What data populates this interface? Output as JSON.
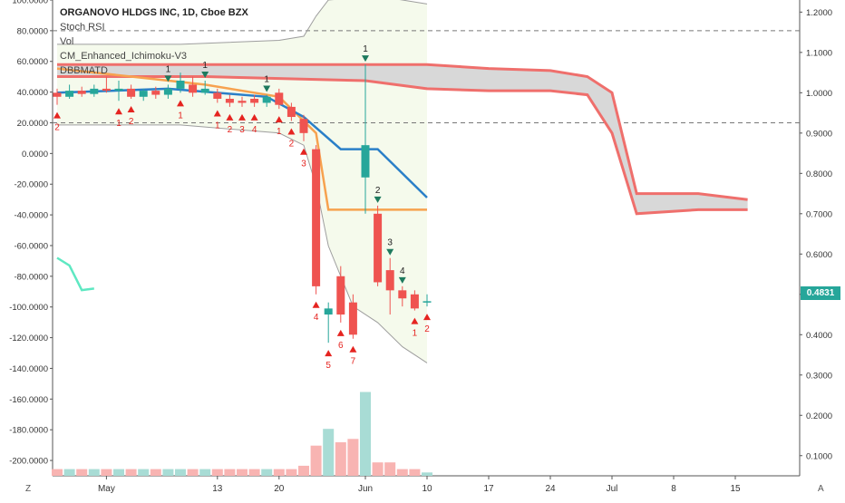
{
  "legend": {
    "title": "ORGANOVO HLDGS INC, 1D, Cboe BZX",
    "indicators": [
      "Stoch RSI",
      "Vol",
      "CM_Enhanced_Ichimoku-V3",
      "DBBMATD"
    ]
  },
  "corner": {
    "left": "Z",
    "right": "A"
  },
  "last_price": "0.4831",
  "colors": {
    "up": "#26a69a",
    "down": "#ef5350",
    "ema": "#2a7fc8",
    "kijun": "#f7a24f",
    "bb": "#9e9e9e",
    "cloud": "#d8d8d8",
    "cloud_edge": "#ef6f6c",
    "stoch": "#5ee8c2"
  },
  "chart_data": {
    "type": "candlestick",
    "title": "ORGANOVO HLDGS INC, 1D, Cboe BZX",
    "x_ticks": [
      {
        "i": 4,
        "label": "May"
      },
      {
        "i": 13,
        "label": "13"
      },
      {
        "i": 18,
        "label": "20"
      },
      {
        "i": 25,
        "label": "Jun"
      },
      {
        "i": 30,
        "label": "10"
      },
      {
        "i": 35,
        "label": "17"
      },
      {
        "i": 40,
        "label": "24"
      },
      {
        "i": 45,
        "label": "Jul"
      },
      {
        "i": 50,
        "label": "8"
      },
      {
        "i": 55,
        "label": "15"
      }
    ],
    "right_axis": {
      "ylim": [
        0.05,
        1.23
      ],
      "ticks": [
        "1.2000",
        "1.1000",
        "1.0000",
        "0.9000",
        "0.8000",
        "0.7000",
        "0.6000",
        "0.5000",
        "0.4000",
        "0.3000",
        "0.2000",
        "0.1000"
      ]
    },
    "left_axis": {
      "ylim": [
        -210,
        100
      ],
      "ticks": [
        "100.0000",
        "80.0000",
        "60.0000",
        "40.0000",
        "20.0000",
        "0.0000",
        "-20.0000",
        "-40.0000",
        "-60.0000",
        "-80.0000",
        "-100.0000",
        "-120.0000",
        "-140.0000",
        "-160.0000",
        "-180.0000",
        "-200.0000"
      ],
      "dashed_levels": [
        80,
        20
      ]
    },
    "candles": [
      {
        "i": 0,
        "o": 1.0,
        "h": 1.01,
        "l": 0.97,
        "c": 0.99
      },
      {
        "i": 1,
        "o": 0.99,
        "h": 1.02,
        "l": 0.985,
        "c": 1.005
      },
      {
        "i": 2,
        "o": 1.005,
        "h": 1.015,
        "l": 0.99,
        "c": 0.997
      },
      {
        "i": 3,
        "o": 0.997,
        "h": 1.02,
        "l": 0.99,
        "c": 1.01
      },
      {
        "i": 4,
        "o": 1.01,
        "h": 1.04,
        "l": 1.0,
        "c": 1.005
      },
      {
        "i": 5,
        "o": 1.005,
        "h": 1.03,
        "l": 0.98,
        "c": 1.01
      },
      {
        "i": 6,
        "o": 1.01,
        "h": 1.02,
        "l": 0.985,
        "c": 0.99
      },
      {
        "i": 7,
        "o": 0.99,
        "h": 1.01,
        "l": 0.98,
        "c": 1.005
      },
      {
        "i": 8,
        "o": 1.005,
        "h": 1.015,
        "l": 0.985,
        "c": 0.995
      },
      {
        "i": 9,
        "o": 0.995,
        "h": 1.02,
        "l": 0.985,
        "c": 1.01
      },
      {
        "i": 10,
        "o": 1.01,
        "h": 1.05,
        "l": 1.0,
        "c": 1.03
      },
      {
        "i": 11,
        "o": 1.02,
        "h": 1.04,
        "l": 0.99,
        "c": 1.0
      },
      {
        "i": 12,
        "o": 1.0,
        "h": 1.03,
        "l": 0.995,
        "c": 1.01
      },
      {
        "i": 13,
        "o": 1.0,
        "h": 1.01,
        "l": 0.975,
        "c": 0.985
      },
      {
        "i": 14,
        "o": 0.985,
        "h": 0.995,
        "l": 0.965,
        "c": 0.975
      },
      {
        "i": 15,
        "o": 0.98,
        "h": 0.99,
        "l": 0.965,
        "c": 0.975
      },
      {
        "i": 16,
        "o": 0.985,
        "h": 0.995,
        "l": 0.965,
        "c": 0.975
      },
      {
        "i": 17,
        "o": 0.975,
        "h": 0.995,
        "l": 0.965,
        "c": 0.99
      },
      {
        "i": 18,
        "o": 1.0,
        "h": 1.01,
        "l": 0.96,
        "c": 0.97
      },
      {
        "i": 19,
        "o": 0.965,
        "h": 0.975,
        "l": 0.93,
        "c": 0.94
      },
      {
        "i": 20,
        "o": 0.935,
        "h": 0.945,
        "l": 0.88,
        "c": 0.9
      },
      {
        "i": 21,
        "o": 0.86,
        "h": 0.87,
        "l": 0.5,
        "c": 0.52
      },
      {
        "i": 22,
        "o": 0.45,
        "h": 0.48,
        "l": 0.38,
        "c": 0.465
      },
      {
        "i": 23,
        "o": 0.545,
        "h": 0.57,
        "l": 0.43,
        "c": 0.45
      },
      {
        "i": 24,
        "o": 0.48,
        "h": 0.5,
        "l": 0.39,
        "c": 0.4
      },
      {
        "i": 25,
        "o": 0.79,
        "h": 1.07,
        "l": 0.7,
        "c": 0.87
      },
      {
        "i": 26,
        "o": 0.7,
        "h": 0.72,
        "l": 0.52,
        "c": 0.53
      },
      {
        "i": 27,
        "o": 0.56,
        "h": 0.59,
        "l": 0.45,
        "c": 0.51
      },
      {
        "i": 28,
        "o": 0.51,
        "h": 0.52,
        "l": 0.47,
        "c": 0.49
      },
      {
        "i": 29,
        "o": 0.5,
        "h": 0.51,
        "l": 0.46,
        "c": 0.465
      },
      {
        "i": 30,
        "o": 0.48,
        "h": 0.5,
        "l": 0.47,
        "c": 0.483
      }
    ],
    "volume": [
      2,
      2,
      2,
      2,
      2,
      2,
      2,
      2,
      2,
      2,
      2,
      2,
      2,
      2,
      2,
      2,
      2,
      2,
      2,
      2,
      3,
      9,
      14,
      10,
      11,
      25,
      4,
      4,
      2,
      2,
      1
    ],
    "ema": [
      {
        "i": 0,
        "v": 1.0
      },
      {
        "i": 9,
        "v": 1.01
      },
      {
        "i": 17,
        "v": 0.99
      },
      {
        "i": 20,
        "v": 0.94
      },
      {
        "i": 23,
        "v": 0.86
      },
      {
        "i": 26,
        "v": 0.86
      },
      {
        "i": 30,
        "v": 0.74
      }
    ],
    "kijun": [
      {
        "i": 0,
        "v": 1.06
      },
      {
        "i": 6,
        "v": 1.04
      },
      {
        "i": 12,
        "v": 1.02
      },
      {
        "i": 18,
        "v": 0.99
      },
      {
        "i": 21,
        "v": 0.9
      },
      {
        "i": 22,
        "v": 0.71
      },
      {
        "i": 26,
        "v": 0.71
      },
      {
        "i": 30,
        "v": 0.71
      }
    ],
    "bb_upper": [
      {
        "i": 0,
        "v": 1.12
      },
      {
        "i": 10,
        "v": 1.12
      },
      {
        "i": 18,
        "v": 1.13
      },
      {
        "i": 20,
        "v": 1.14
      },
      {
        "i": 21,
        "v": 1.19
      },
      {
        "i": 22,
        "v": 1.23
      },
      {
        "i": 26,
        "v": 1.24
      },
      {
        "i": 30,
        "v": 1.22
      }
    ],
    "bb_lower": [
      {
        "i": 0,
        "v": 0.92
      },
      {
        "i": 10,
        "v": 0.92
      },
      {
        "i": 18,
        "v": 0.9
      },
      {
        "i": 20,
        "v": 0.87
      },
      {
        "i": 21,
        "v": 0.77
      },
      {
        "i": 22,
        "v": 0.62
      },
      {
        "i": 24,
        "v": 0.47
      },
      {
        "i": 26,
        "v": 0.43
      },
      {
        "i": 28,
        "v": 0.37
      },
      {
        "i": 30,
        "v": 0.33
      }
    ],
    "cloud_upper": [
      {
        "i": 0,
        "v": 1.07
      },
      {
        "i": 12,
        "v": 1.07
      },
      {
        "i": 25,
        "v": 1.07
      },
      {
        "i": 30,
        "v": 1.07
      },
      {
        "i": 35,
        "v": 1.06
      },
      {
        "i": 40,
        "v": 1.055
      },
      {
        "i": 43,
        "v": 1.04
      },
      {
        "i": 45,
        "v": 1.0
      },
      {
        "i": 47,
        "v": 0.75
      },
      {
        "i": 52,
        "v": 0.75
      },
      {
        "i": 56,
        "v": 0.735
      }
    ],
    "cloud_lower": [
      {
        "i": 0,
        "v": 1.04
      },
      {
        "i": 12,
        "v": 1.04
      },
      {
        "i": 25,
        "v": 1.03
      },
      {
        "i": 30,
        "v": 1.01
      },
      {
        "i": 35,
        "v": 1.005
      },
      {
        "i": 40,
        "v": 1.005
      },
      {
        "i": 43,
        "v": 0.995
      },
      {
        "i": 45,
        "v": 0.9
      },
      {
        "i": 47,
        "v": 0.7
      },
      {
        "i": 52,
        "v": 0.71
      },
      {
        "i": 56,
        "v": 0.71
      }
    ],
    "stoch_rsi": [
      {
        "i": 0,
        "v": -68
      },
      {
        "i": 1,
        "v": -73
      },
      {
        "i": 2,
        "v": -89
      },
      {
        "i": 3,
        "v": -88
      }
    ],
    "td_markers": [
      {
        "i": 0,
        "label": "2",
        "pos": "below"
      },
      {
        "i": 5,
        "label": "1",
        "pos": "below"
      },
      {
        "i": 6,
        "label": "2",
        "pos": "below"
      },
      {
        "i": 10,
        "label": "1",
        "pos": "below"
      },
      {
        "i": 13,
        "label": "1",
        "pos": "below"
      },
      {
        "i": 14,
        "label": "2",
        "pos": "below"
      },
      {
        "i": 15,
        "label": "3",
        "pos": "below"
      },
      {
        "i": 16,
        "label": "4",
        "pos": "below"
      },
      {
        "i": 18,
        "label": "1",
        "pos": "below"
      },
      {
        "i": 19,
        "label": "2",
        "pos": "below"
      },
      {
        "i": 20,
        "label": "3",
        "pos": "below"
      },
      {
        "i": 21,
        "label": "4",
        "pos": "below"
      },
      {
        "i": 22,
        "label": "5",
        "pos": "below"
      },
      {
        "i": 23,
        "label": "6",
        "pos": "below"
      },
      {
        "i": 24,
        "label": "7",
        "pos": "below"
      },
      {
        "i": 25,
        "label": "1",
        "pos": "above"
      },
      {
        "i": 26,
        "label": "2",
        "pos": "above"
      },
      {
        "i": 27,
        "label": "3",
        "pos": "above"
      },
      {
        "i": 28,
        "label": "4",
        "pos": "above"
      },
      {
        "i": 29,
        "label": "1",
        "pos": "below"
      },
      {
        "i": 30,
        "label": "2",
        "pos": "below"
      },
      {
        "i": 9,
        "label": "1",
        "pos": "above"
      },
      {
        "i": 12,
        "label": "1",
        "pos": "above"
      },
      {
        "i": 17,
        "label": "1",
        "pos": "above"
      }
    ]
  }
}
